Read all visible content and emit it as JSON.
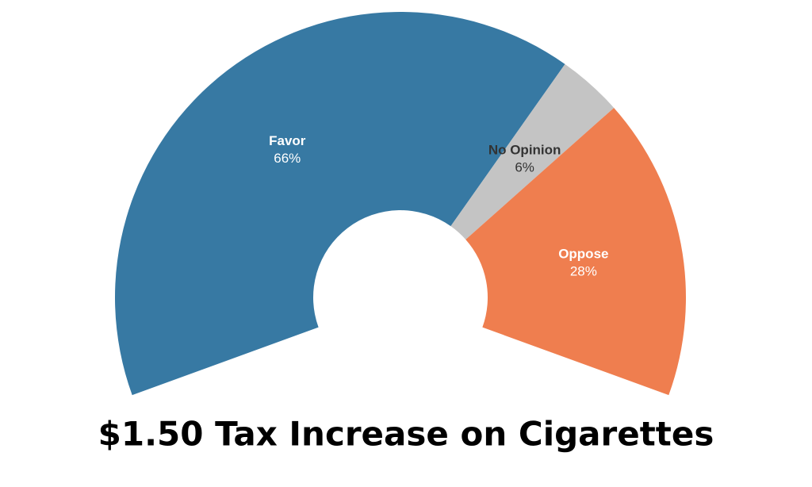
{
  "chart_data": {
    "type": "pie",
    "title": "$1.50 Tax Increase on Cigarettes",
    "categories": [
      "Favor",
      "No Opinion",
      "Oppose"
    ],
    "values": [
      66,
      6,
      28
    ],
    "value_labels": [
      "66%",
      "6%",
      "28%"
    ],
    "colors": [
      "#3779a3",
      "#c4c4c4",
      "#ef7e4f"
    ]
  }
}
